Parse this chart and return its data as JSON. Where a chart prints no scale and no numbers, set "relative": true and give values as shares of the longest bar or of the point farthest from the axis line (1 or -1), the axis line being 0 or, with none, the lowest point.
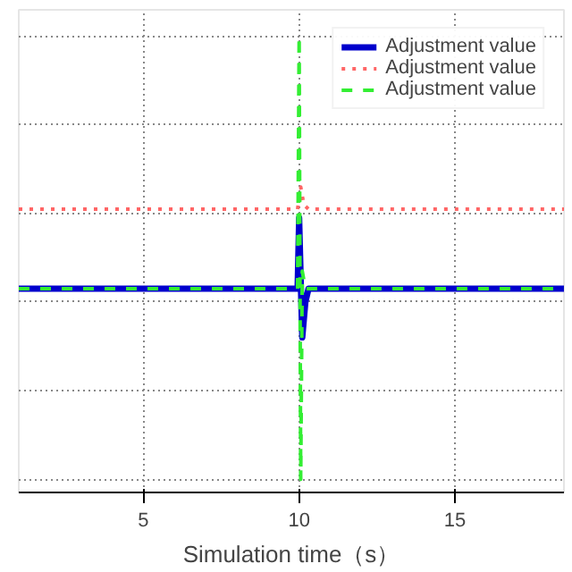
{
  "chart_data": {
    "type": "line",
    "xlabel": "Simulation time（s）",
    "relative": true,
    "xlim": [
      1,
      18.5
    ],
    "xticks": [
      5,
      10,
      15
    ],
    "grid": true,
    "legend": "top right",
    "series": [
      {
        "name": "Adjustment value",
        "color": "#0000cc",
        "line_style": "solid",
        "x": [
          1,
          9.95,
          10.0,
          10.05,
          10.1,
          10.2,
          10.3,
          18.5
        ],
        "values": [
          0.43,
          0.43,
          0.59,
          0.45,
          0.32,
          0.4,
          0.43,
          0.43
        ]
      },
      {
        "name": "Adjustment value",
        "color": "#ff6666",
        "line_style": "dotted",
        "x": [
          1,
          9.95,
          10.05,
          10.15,
          10.3,
          18.5
        ],
        "values": [
          0.61,
          0.61,
          0.66,
          0.62,
          0.61,
          0.61
        ]
      },
      {
        "name": "Adjustment value",
        "color": "#33ee33",
        "line_style": "dashed",
        "x": [
          1,
          9.95,
          10.0,
          10.05,
          10.1,
          10.2,
          18.5
        ],
        "values": [
          0.43,
          0.43,
          1,
          0,
          0.47,
          0.43,
          0.43
        ]
      }
    ]
  }
}
